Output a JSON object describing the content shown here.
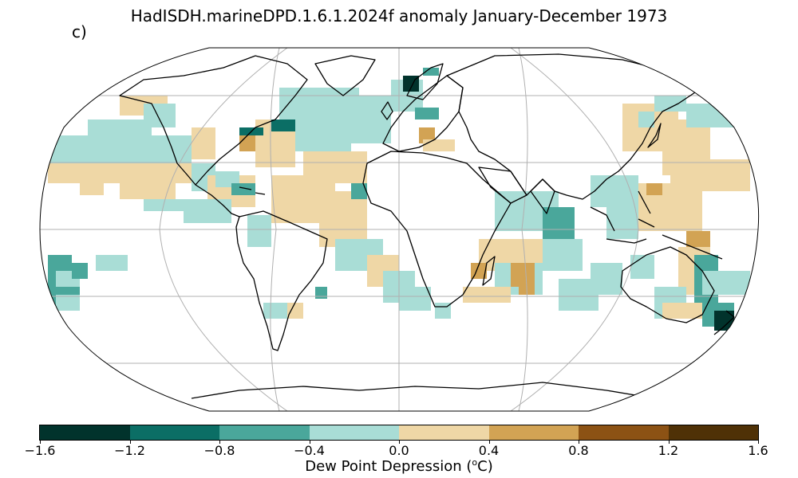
{
  "title": "HadISDH.marineDPD.1.6.1.2024f anomaly January-December 1973",
  "panel_label": "c)",
  "colorbar": {
    "label_prefix": "Dew Point Depression (",
    "label_sup": "o",
    "label_suffix": "C)",
    "ticks": [
      "−1.6",
      "−1.2",
      "−0.8",
      "−0.4",
      "0.0",
      "0.4",
      "0.8",
      "1.2",
      "1.6"
    ],
    "colors": [
      "#01332c",
      "#0b6e65",
      "#4aa79b",
      "#a9ddd6",
      "#efd7a6",
      "#d2a354",
      "#8c5214",
      "#4f3106"
    ]
  },
  "map": {
    "projection": "Robinson",
    "ocean_color": "#ffffff",
    "land_outline": "#000000",
    "gridline_color": "#b0b0b0"
  }
}
